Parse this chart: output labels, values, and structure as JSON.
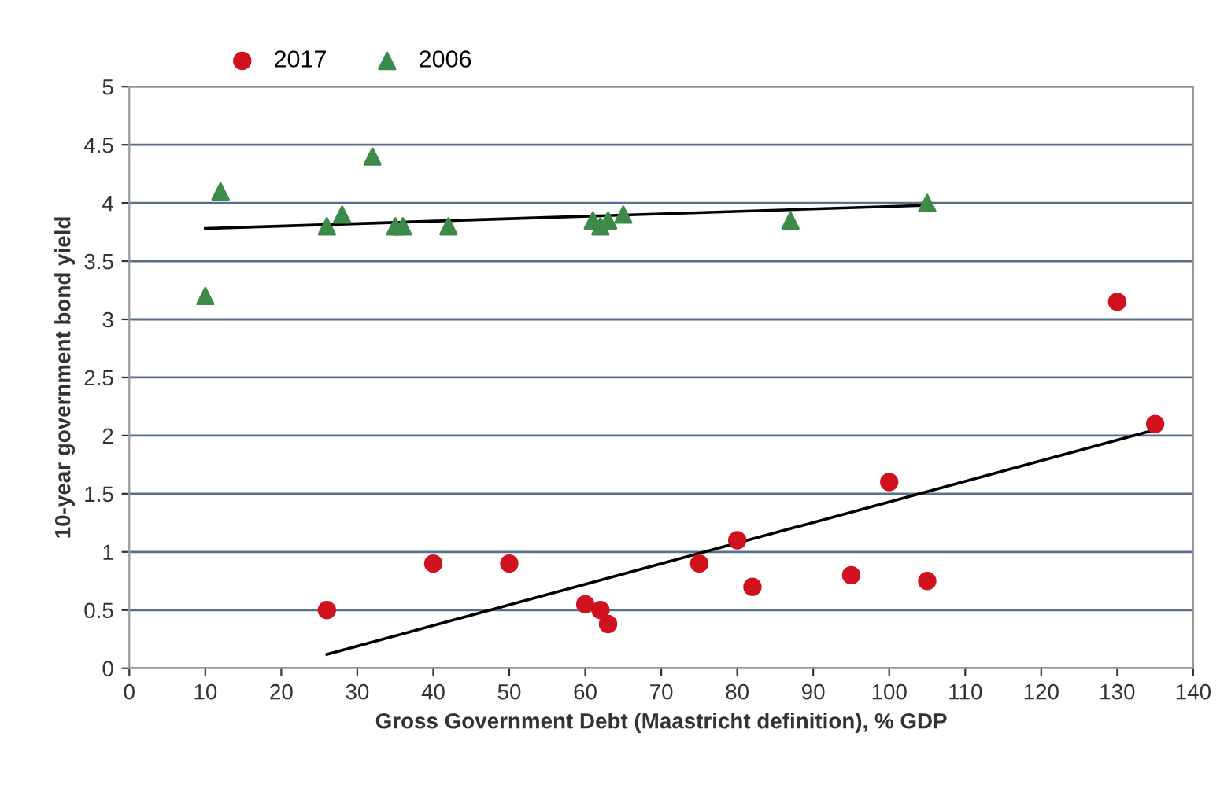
{
  "chart_data": {
    "type": "scatter",
    "xlabel": "Gross Government Debt (Maastricht definition), % GDP",
    "ylabel": "10-year government bond yield",
    "series": [
      {
        "name": "2017",
        "color": "#d0121f",
        "marker": "circle",
        "x": [
          26,
          40,
          50,
          60,
          62,
          63,
          75,
          80,
          82,
          95,
          100,
          105,
          130,
          135
        ],
        "values": [
          0.5,
          0.9,
          0.9,
          0.55,
          0.5,
          0.38,
          0.9,
          1.1,
          0.7,
          0.8,
          1.6,
          0.75,
          3.15,
          2.1
        ]
      },
      {
        "name": "2006",
        "color": "#3e8a4a",
        "marker": "triangle",
        "x": [
          10,
          12,
          26,
          28,
          32,
          35,
          36,
          42,
          61,
          62,
          63,
          65,
          87,
          105
        ],
        "values": [
          3.2,
          4.1,
          3.8,
          3.9,
          4.4,
          3.8,
          3.8,
          3.8,
          3.85,
          3.8,
          3.85,
          3.9,
          3.85,
          4.0
        ]
      },
      {
        "type": "line",
        "color": "#000000",
        "x": [
          10,
          105
        ],
        "values": [
          3.78,
          3.98
        ]
      },
      {
        "type": "line",
        "color": "#000000",
        "x": [
          26,
          135
        ],
        "values": [
          0.12,
          2.05
        ]
      }
    ],
    "xlim": [
      0,
      140
    ],
    "xticks": [
      0,
      10,
      20,
      30,
      40,
      50,
      60,
      70,
      80,
      90,
      100,
      110,
      120,
      130,
      140
    ],
    "ylim": [
      0,
      5
    ],
    "yticks": [
      0,
      0.5,
      1,
      1.5,
      2,
      2.5,
      3,
      3.5,
      4,
      4.5,
      5
    ],
    "grid": "y",
    "legend": "top left"
  }
}
